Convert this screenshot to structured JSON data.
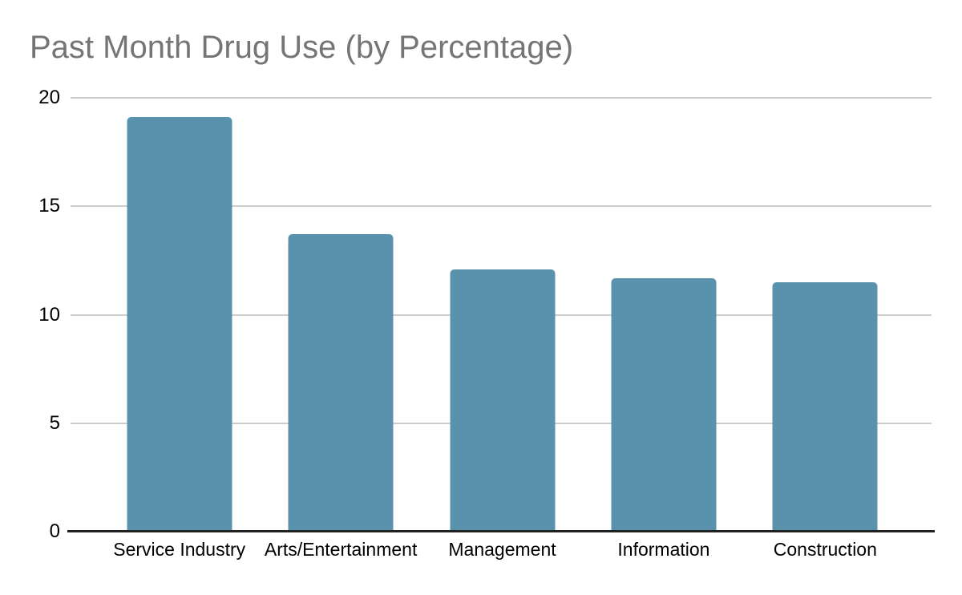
{
  "chart_data": {
    "type": "bar",
    "title": "Past Month Drug Use (by Percentage)",
    "categories": [
      "Service Industry",
      "Arts/Entertainment",
      "Management",
      "Information",
      "Construction"
    ],
    "values": [
      19.1,
      13.7,
      12.1,
      11.7,
      11.5
    ],
    "xlabel": "",
    "ylabel": "",
    "ylim": [
      0,
      20
    ],
    "yticks": [
      0,
      5,
      10,
      15,
      20
    ],
    "grid": true,
    "legend": "none",
    "colors": {
      "bar": "#5a91ac",
      "title": "#757575",
      "tick_label": "#000000",
      "gridline": "#cccccc",
      "baseline": "#212121",
      "background": "#ffffff"
    }
  }
}
